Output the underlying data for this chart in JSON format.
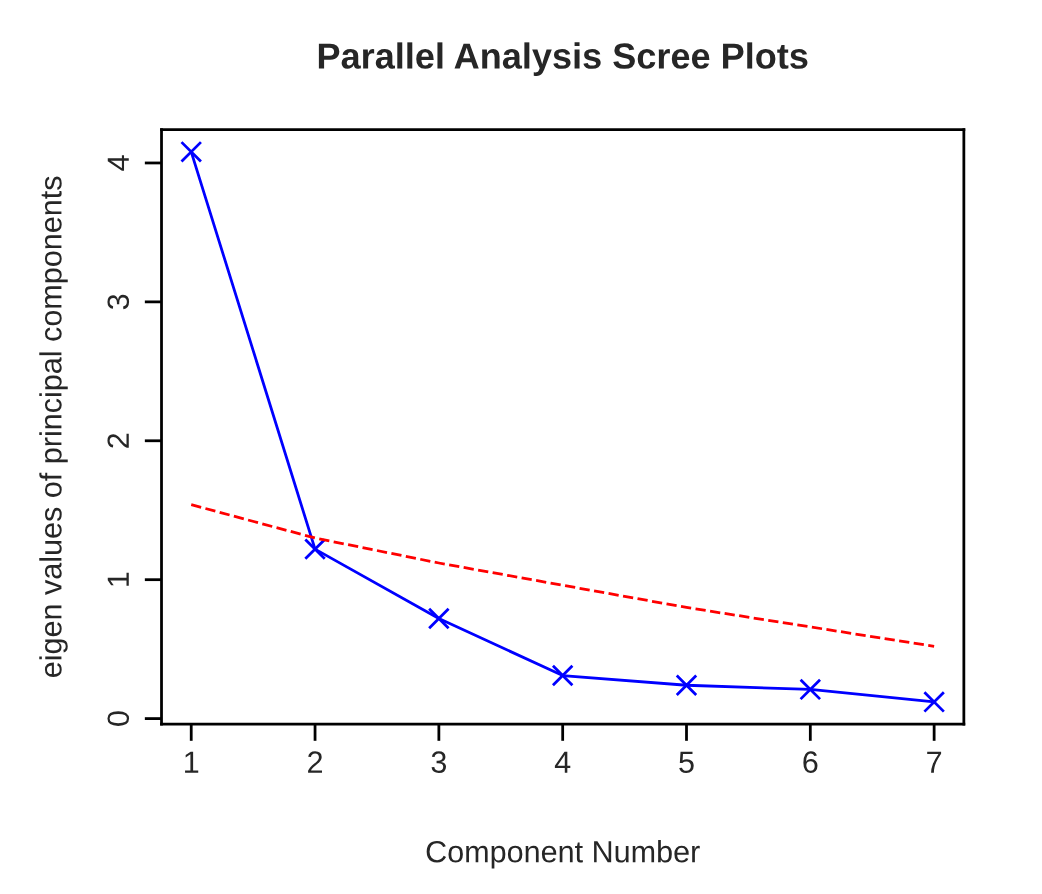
{
  "chart_data": {
    "type": "line",
    "title": "Parallel Analysis Scree Plots",
    "xlabel": "Component Number",
    "ylabel": "eigen values of principal components",
    "x": [
      1,
      2,
      3,
      4,
      5,
      6,
      7
    ],
    "series": [
      {
        "color": "#0000ff",
        "marker": "cross",
        "line_style": "solid",
        "values": [
          4.08,
          1.22,
          0.72,
          0.31,
          0.24,
          0.21,
          0.12
        ]
      },
      {
        "color": "#ff0000",
        "marker": "none",
        "line_style": "dashed",
        "values": [
          1.54,
          1.3,
          1.12,
          0.96,
          0.8,
          0.66,
          0.52
        ]
      }
    ],
    "xlim": [
      0.76,
      7.24
    ],
    "ylim": [
      -0.04,
      4.24
    ],
    "xticks": [
      1,
      2,
      3,
      4,
      5,
      6,
      7
    ],
    "yticks": [
      0,
      1,
      2,
      3,
      4
    ],
    "grid": false
  }
}
